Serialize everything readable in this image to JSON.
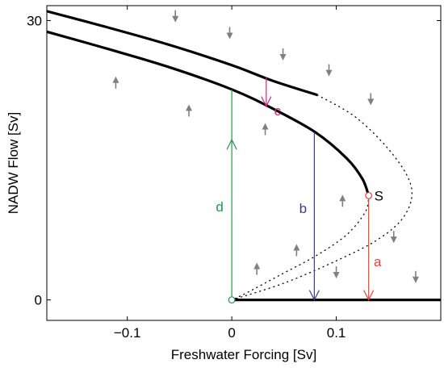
{
  "chart_data": {
    "type": "line",
    "xlabel": "Freshwater Forcing [Sv]",
    "ylabel": "NADW Flow [Sv]",
    "xlim": [
      -0.177,
      0.2
    ],
    "ylim": [
      -2.2,
      31.6
    ],
    "xticks": [
      {
        "value": -0.1,
        "label": "−0.1"
      },
      {
        "value": 0,
        "label": "0"
      },
      {
        "value": 0.1,
        "label": "0.1"
      }
    ],
    "yticks": [
      {
        "value": 0,
        "label": "0"
      },
      {
        "value": 30,
        "label": "30"
      }
    ],
    "grid": false,
    "colors": {
      "branch": "#000000",
      "field_arrow": "#808080",
      "a": "#e8403c",
      "b": "#3a3a92",
      "c": "#d6237f",
      "d": "#1e9a4a"
    },
    "series": [
      {
        "style": "solid",
        "x": [
          -0.177,
          -0.12,
          -0.06,
          0.0,
          0.04,
          0.082
        ],
        "y": [
          31.0,
          29.3,
          27.4,
          25.2,
          23.5,
          22.0
        ]
      },
      {
        "style": "solid",
        "x": [
          -0.177,
          -0.12,
          -0.06,
          0.0,
          0.04,
          0.08,
          0.11,
          0.125,
          0.131
        ],
        "y": [
          28.8,
          27.0,
          25.0,
          22.6,
          20.5,
          18.0,
          15.2,
          13.0,
          11.2
        ]
      },
      {
        "style": "solid",
        "x": [
          0.0,
          0.2
        ],
        "y": [
          0.0,
          0.0
        ]
      },
      {
        "style": "dotted",
        "x": [
          0.131,
          0.128,
          0.11,
          0.08,
          0.045,
          0.015,
          0.0
        ],
        "y": [
          11.2,
          9.5,
          7.0,
          4.7,
          2.6,
          0.8,
          0.0
        ]
      },
      {
        "style": "dotted",
        "x": [
          0.082,
          0.12,
          0.155,
          0.172,
          0.165,
          0.14,
          0.1,
          0.05,
          0.0
        ],
        "y": [
          22.0,
          19.5,
          15.5,
          12.0,
          9.0,
          6.5,
          4.2,
          1.8,
          0.0
        ]
      }
    ],
    "transitions": [
      {
        "label": "a",
        "color_key": "a",
        "x": 0.131,
        "y_from": 11.2,
        "y_to": 0.0
      },
      {
        "label": "b",
        "color_key": "b",
        "x": 0.079,
        "y_from": 18.0,
        "y_to": 0.0
      },
      {
        "label": "c",
        "color_key": "c",
        "x": 0.033,
        "y_from": 23.9,
        "y_to": 20.8
      },
      {
        "label": "d",
        "color_key": "d",
        "x": 0.0,
        "y_from": 0.0,
        "y_to": 22.6,
        "arrow_at": 17.2
      }
    ],
    "saddle_label": "S",
    "saddle_point": {
      "x": 0.131,
      "y": 11.2
    },
    "origin_point": {
      "x": 0.0,
      "y": 0.0
    },
    "field_arrows": [
      {
        "x": -0.054,
        "y": 30.5,
        "dir": "down"
      },
      {
        "x": -0.002,
        "y": 28.7,
        "dir": "down"
      },
      {
        "x": 0.049,
        "y": 26.4,
        "dir": "down"
      },
      {
        "x": 0.093,
        "y": 24.7,
        "dir": "down"
      },
      {
        "x": 0.133,
        "y": 21.6,
        "dir": "down"
      },
      {
        "x": -0.111,
        "y": 23.3,
        "dir": "up"
      },
      {
        "x": -0.041,
        "y": 20.3,
        "dir": "up"
      },
      {
        "x": 0.032,
        "y": 18.3,
        "dir": "up"
      },
      {
        "x": 0.106,
        "y": 10.6,
        "dir": "up"
      },
      {
        "x": 0.062,
        "y": 5.3,
        "dir": "up"
      },
      {
        "x": 0.024,
        "y": 3.3,
        "dir": "up"
      },
      {
        "x": 0.1,
        "y": 3.0,
        "dir": "down"
      },
      {
        "x": 0.155,
        "y": 6.8,
        "dir": "down"
      },
      {
        "x": 0.176,
        "y": 2.5,
        "dir": "down"
      }
    ]
  }
}
